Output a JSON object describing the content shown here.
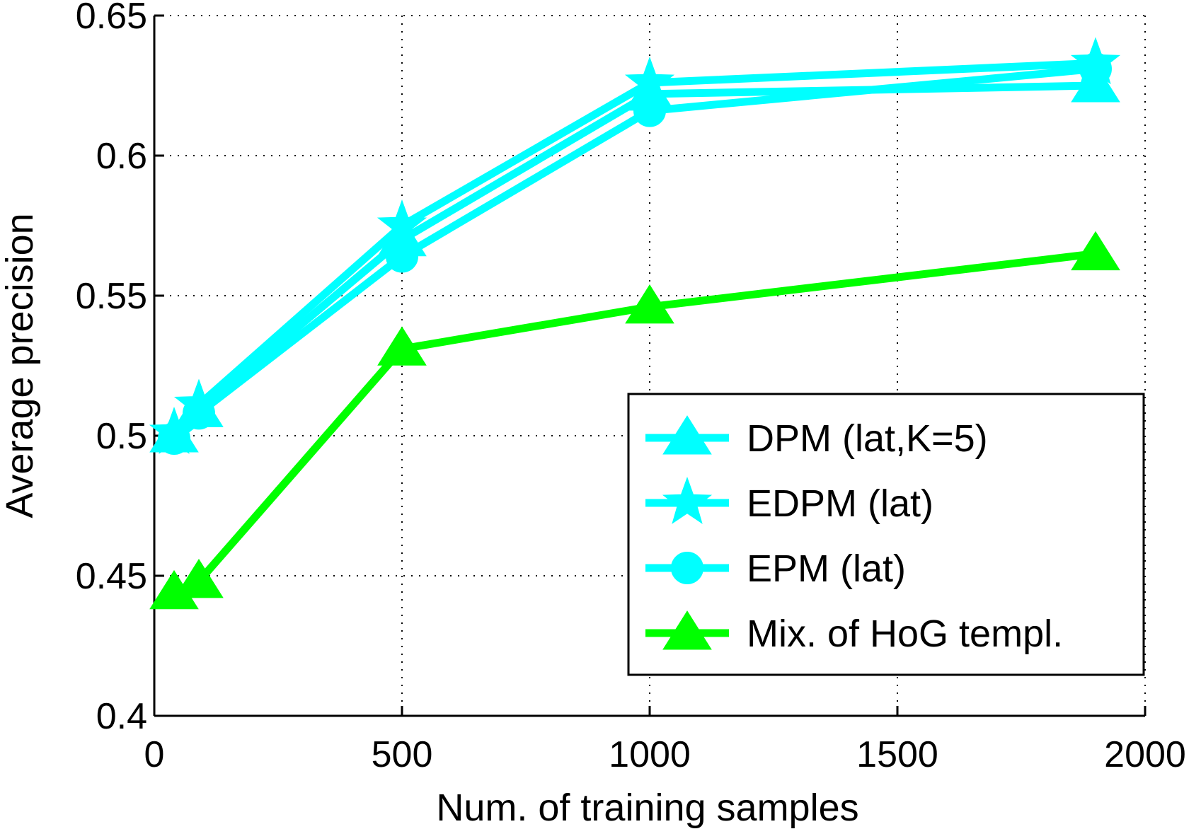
{
  "chart_data": {
    "type": "line",
    "xlabel": "Num. of training samples",
    "ylabel": "Average precision",
    "xlim": [
      0,
      2000
    ],
    "ylim": [
      0.4,
      0.65
    ],
    "xticks": [
      0,
      500,
      1000,
      1500,
      2000
    ],
    "xtick_labels": [
      "0",
      "500",
      "1000",
      "1500",
      "2000"
    ],
    "yticks": [
      0.4,
      0.45,
      0.5,
      0.55,
      0.6,
      0.65
    ],
    "ytick_labels": [
      "0.4",
      "0.45",
      "0.5",
      "0.55",
      "0.6",
      "0.65"
    ],
    "grid": true,
    "legend_position": "bottom-right",
    "series": [
      {
        "name": "DPM (lat,K=5)",
        "marker": "triangle",
        "color": "#00ffff",
        "x": [
          40,
          90,
          500,
          1000,
          1900
        ],
        "y": [
          0.5,
          0.509,
          0.57,
          0.622,
          0.625
        ]
      },
      {
        "name": "EDPM (lat)",
        "marker": "star",
        "color": "#00ffff",
        "x": [
          40,
          90,
          500,
          1000,
          1900
        ],
        "y": [
          0.501,
          0.511,
          0.575,
          0.626,
          0.633
        ]
      },
      {
        "name": "EPM (lat)",
        "marker": "circle",
        "color": "#00ffff",
        "x": [
          40,
          90,
          500,
          1000,
          1900
        ],
        "y": [
          0.499,
          0.508,
          0.564,
          0.616,
          0.631
        ]
      },
      {
        "name": "Mix. of HoG templ.",
        "marker": "triangle",
        "color": "#00ff00",
        "x": [
          40,
          90,
          500,
          1000,
          1900
        ],
        "y": [
          0.444,
          0.448,
          0.531,
          0.546,
          0.565
        ]
      }
    ]
  }
}
